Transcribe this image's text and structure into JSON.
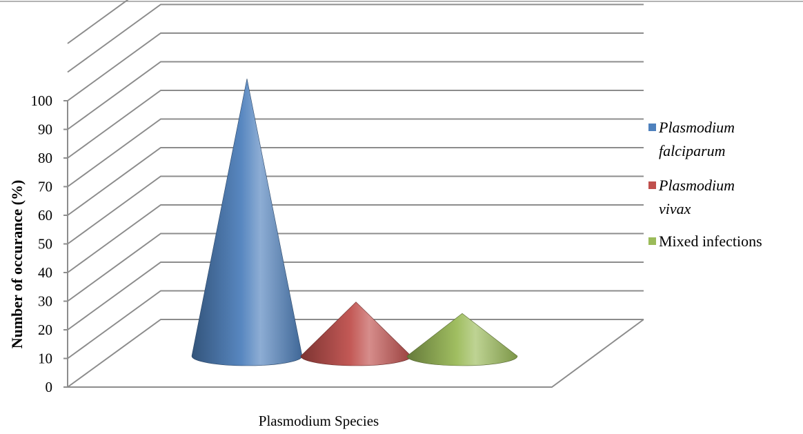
{
  "chart_data": {
    "type": "bar",
    "style": "3d-cone",
    "title": "",
    "xlabel": "Plasmodium Species",
    "ylabel": "Number  of occurance (%)",
    "ylim": [
      0,
      100
    ],
    "yticks": [
      0,
      10,
      20,
      30,
      40,
      50,
      60,
      70,
      80,
      90,
      100
    ],
    "grid": true,
    "legend_position": "right",
    "series": [
      {
        "name_lines": [
          "Plasmodium",
          "falciparum"
        ],
        "italic": true,
        "value": 100,
        "color": "#4f81bd"
      },
      {
        "name_lines": [
          "Plasmodium",
          "vivax"
        ],
        "italic": true,
        "value": 22,
        "color": "#c0504d"
      },
      {
        "name_lines": [
          "Mixed infections"
        ],
        "italic": false,
        "value": 18,
        "color": "#9bbb59"
      }
    ]
  }
}
